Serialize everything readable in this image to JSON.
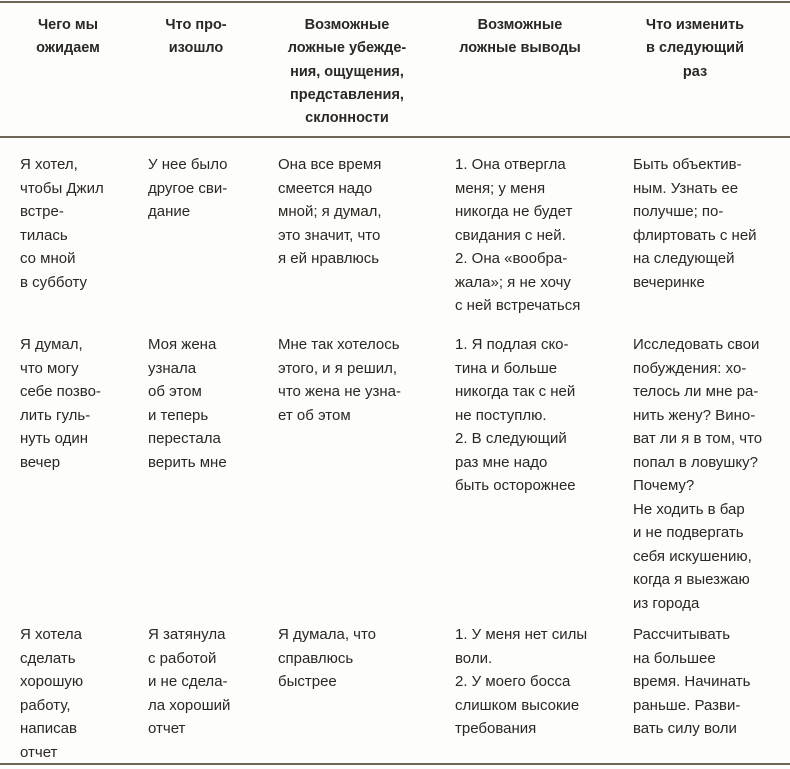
{
  "colors": {
    "rule": "#6e6555",
    "text": "#2b2722",
    "background": "#fdfdfb"
  },
  "table": {
    "headers": [
      "Чего мы\nожидаем",
      "Что про-\nизошло",
      "Возможные\nложные убежде-\nния, ощущения,\nпредставления,\nсклонности",
      "Возможные\nложные выводы",
      "Что изменить\nв следующий\nраз"
    ],
    "rows": [
      [
        "Я хотел,\nчтобы Джил\nвстре-\nтилась\nсо мной\nв субботу",
        "У нее было\nдругое сви-\nдание",
        "Она все время\nсмеется надо\nмной; я думал,\nэто значит, что\nя ей нравлюсь",
        "1. Она отвергла\nменя; у меня\nникогда не будет\nсвидания с ней.\n2. Она «вообра-\nжала»; я не хочу\nс ней встречаться",
        "Быть объектив-\nным. Узнать ее\nполучше; по-\nфлиртовать с ней\nна следующей\nвечеринке"
      ],
      [
        "Я думал,\nчто могу\nсебе позво-\nлить гуль-\nнуть один\nвечер",
        "Моя жена\nузнала\nоб этом\nи теперь\nперестала\nверить мне",
        "Мне так хотелось\nэтого, и я решил,\nчто жена не узна-\nет об этом",
        "1. Я подлая ско-\nтина и больше\nникогда так с ней\nне поступлю.\n2. В следующий\nраз мне надо\nбыть осторожнее",
        "Исследовать свои\nпобуждения: хо-\nтелось ли мне ра-\nнить жену? Вино-\nват ли я в том, что\nпопал в ловушку?\nПочему?\nНе ходить в бар\nи не подвергать\nсебя искушению,\nкогда я выезжаю\nиз города"
      ],
      [
        "Я хотела\nсделать\nхорошую\nработу,\nнаписав\nотчет",
        "Я затянула\nс работой\nи не сделa-\nла хороший\nотчет",
        "Я думала, что\nсправлюсь\nбыстрее",
        "1. У меня нет силы\nволи.\n2. У моего босса\nслишком высокие\nтребования",
        "Рассчитывать\nна большее\nвремя. Начинать\nраньше. Разви-\nвать силу воли"
      ]
    ]
  }
}
